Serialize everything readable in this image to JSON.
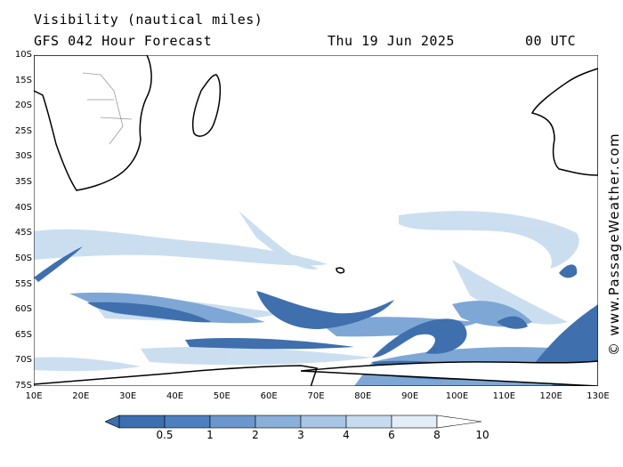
{
  "header": {
    "title": "Visibility (nautical miles)",
    "subtitle": "GFS 042 Hour Forecast",
    "date": "Thu 19 Jun 2025",
    "time": "00 UTC"
  },
  "axes": {
    "lat_labels": [
      "10S",
      "15S",
      "20S",
      "25S",
      "30S",
      "35S",
      "40S",
      "45S",
      "50S",
      "55S",
      "60S",
      "65S",
      "70S",
      "75S"
    ],
    "lon_labels": [
      "10E",
      "20E",
      "30E",
      "40E",
      "50E",
      "60E",
      "70E",
      "80E",
      "90E",
      "100E",
      "110E",
      "120E",
      "130E"
    ],
    "lat_range": [
      -10,
      -75
    ],
    "lon_range": [
      10,
      130
    ]
  },
  "watermark": "© www.PassageWeather.com",
  "legend": {
    "labels": [
      "0.5",
      "1",
      "2",
      "3",
      "4",
      "6",
      "8",
      "10"
    ],
    "colors": [
      "#3b6fb0",
      "#4d80bf",
      "#6b97cc",
      "#8aafd8",
      "#a8c5e4",
      "#c7dbef",
      "#e2edf8",
      "#ffffff"
    ]
  },
  "colors": {
    "land_fill": "#ffffff",
    "coast": "#000000",
    "border": "#999999",
    "low_vis": "#3f6fad",
    "mid_vis": "#7ea7d6",
    "light_vis": "#c6dbef"
  }
}
